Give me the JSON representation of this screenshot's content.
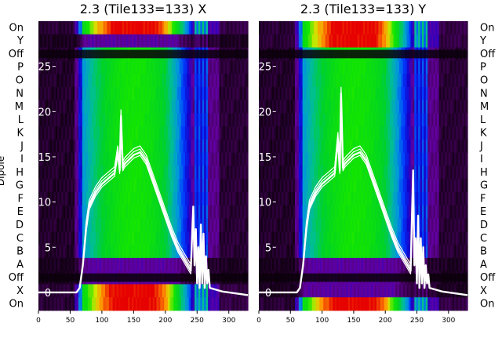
{
  "figure": {
    "row_axis_label": "Dipole"
  },
  "row_labels": [
    "On",
    "Y",
    "Off",
    "P",
    "O",
    "N",
    "M",
    "L",
    "K",
    "J",
    "I",
    "H",
    "G",
    "F",
    "E",
    "D",
    "C",
    "B",
    "A",
    "Off",
    "X",
    "On"
  ],
  "chart_data": [
    {
      "type": "heatmap",
      "title": "2.3 (Tile133=133) X",
      "xlabel": "",
      "ylabel": "Dipole",
      "xlim": [
        0,
        330
      ],
      "xticks": [
        0,
        50,
        100,
        150,
        200,
        250,
        300
      ],
      "overlay_ylim": [
        -2,
        30
      ],
      "overlay_yticks": [
        0,
        5,
        10,
        15,
        20,
        25
      ],
      "rows": [
        "On",
        "Y",
        "Off",
        "P",
        "O",
        "N",
        "M",
        "L",
        "K",
        "J",
        "I",
        "H",
        "G",
        "F",
        "E",
        "D",
        "C",
        "B",
        "A",
        "Off",
        "X",
        "On"
      ],
      "band_rows": [
        "X",
        "On"
      ],
      "overlay_series": {
        "x": [
          0,
          60,
          65,
          70,
          75,
          80,
          90,
          100,
          110,
          120,
          125,
          128,
          130,
          133,
          136,
          140,
          150,
          160,
          170,
          180,
          190,
          200,
          210,
          220,
          230,
          240,
          244,
          246,
          248,
          250,
          252,
          254,
          256,
          258,
          260,
          262,
          264,
          266,
          268,
          270,
          280,
          290,
          300,
          310,
          320,
          330
        ],
        "y": [
          0,
          0,
          0.5,
          3,
          7,
          9.5,
          11,
          12,
          12.6,
          13.2,
          15.5,
          13.5,
          19.5,
          13.8,
          14.2,
          14.5,
          15.2,
          15.5,
          14.5,
          12.5,
          10.5,
          8.5,
          6.5,
          4.8,
          3.6,
          2.4,
          9.5,
          3,
          7,
          1,
          5,
          0.5,
          7.5,
          1,
          6.5,
          0.5,
          4,
          1,
          2.5,
          0.5,
          0.3,
          0.1,
          0,
          -0.1,
          -0.2,
          -0.3
        ]
      },
      "band_scale": [
        0.05,
        0.05,
        0.25,
        0.45,
        0.62,
        0.75,
        0.86,
        0.93,
        0.98,
        0.97,
        0.9,
        0.82,
        0.72,
        0.6,
        0.45,
        0.35,
        0.55,
        0.2,
        0.05,
        0.02,
        0.02,
        0.02
      ]
    },
    {
      "type": "heatmap",
      "title": "2.3 (Tile133=133) Y",
      "xlabel": "",
      "ylabel": "",
      "xlim": [
        0,
        330
      ],
      "xticks": [
        0,
        50,
        100,
        150,
        200,
        250,
        300
      ],
      "overlay_ylim": [
        -2,
        30
      ],
      "overlay_yticks": [
        0,
        5,
        10,
        15,
        20,
        25
      ],
      "rows": [
        "On",
        "Y",
        "Off",
        "P",
        "O",
        "N",
        "M",
        "L",
        "K",
        "J",
        "I",
        "H",
        "G",
        "F",
        "E",
        "D",
        "C",
        "B",
        "A",
        "Off",
        "X",
        "On"
      ],
      "band_rows": [
        "On",
        "Y"
      ],
      "overlay_series": {
        "x": [
          0,
          60,
          65,
          70,
          75,
          80,
          90,
          100,
          110,
          120,
          125,
          128,
          130,
          133,
          136,
          140,
          150,
          160,
          170,
          180,
          190,
          200,
          210,
          220,
          230,
          240,
          244,
          246,
          248,
          250,
          252,
          254,
          256,
          258,
          260,
          262,
          264,
          266,
          268,
          270,
          280,
          290,
          300,
          310,
          320,
          330
        ],
        "y": [
          0,
          0,
          0.5,
          3,
          7,
          9.5,
          11,
          12,
          12.6,
          13.2,
          17,
          13.5,
          22,
          13.8,
          14.2,
          14.5,
          15.2,
          15.5,
          14.5,
          12.5,
          10.5,
          8.5,
          6.5,
          4.8,
          3.6,
          2.4,
          13.5,
          3,
          6,
          1,
          8.5,
          0.5,
          6,
          1,
          5,
          0.5,
          3,
          1,
          2,
          0.5,
          0.3,
          0.1,
          0,
          -0.1,
          -0.2,
          -0.3
        ]
      },
      "band_scale": [
        0.05,
        0.05,
        0.25,
        0.45,
        0.62,
        0.75,
        0.86,
        0.93,
        0.98,
        0.97,
        0.9,
        0.82,
        0.72,
        0.6,
        0.45,
        0.35,
        0.55,
        0.2,
        0.05,
        0.02,
        0.02,
        0.02
      ]
    }
  ]
}
